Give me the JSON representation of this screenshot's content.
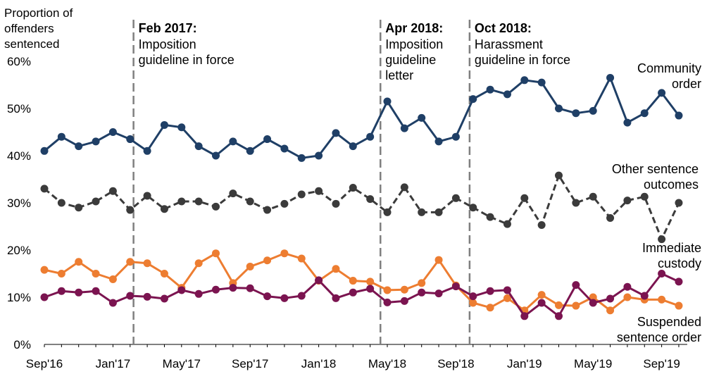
{
  "chart_data": {
    "type": "line",
    "ylabel_lines": [
      "Proportion of",
      "offenders",
      "sentenced"
    ],
    "y_ticks": [
      "0%",
      "10%",
      "20%",
      "30%",
      "40%",
      "50%",
      "60%"
    ],
    "ylim": [
      0,
      60
    ],
    "x_start": "Sep'16",
    "x_tick_labels": [
      {
        "index": 0,
        "label": "Sep'16"
      },
      {
        "index": 4,
        "label": "Jan'17"
      },
      {
        "index": 8,
        "label": "May'17"
      },
      {
        "index": 12,
        "label": "Sep'17"
      },
      {
        "index": 16,
        "label": "Jan'18"
      },
      {
        "index": 20,
        "label": "May'18"
      },
      {
        "index": 24,
        "label": "Sep'18"
      },
      {
        "index": 28,
        "label": "Jan'19"
      },
      {
        "index": 32,
        "label": "May'19"
      },
      {
        "index": 36,
        "label": "Sep'19"
      }
    ],
    "month_count": 38,
    "series": [
      {
        "name_lines": [
          "Community",
          "order"
        ],
        "color": "#1f3f66",
        "dashed": false,
        "values": [
          41,
          44,
          42,
          43,
          45,
          43.5,
          41,
          46.5,
          46,
          42,
          40,
          43,
          41,
          43.5,
          41.5,
          39.5,
          40,
          44.8,
          42,
          44,
          51.5,
          45.8,
          48,
          43,
          44,
          52,
          54,
          53,
          56,
          55.5,
          50,
          49,
          49.5,
          56.5,
          47,
          49,
          53.3,
          48.5
        ]
      },
      {
        "name_lines": [
          "Other sentence",
          "outcomes"
        ],
        "color": "#3b3b3b",
        "dashed": true,
        "values": [
          33,
          30,
          29,
          30.3,
          32.5,
          28.5,
          31.5,
          28.7,
          30.3,
          30.3,
          29.2,
          32,
          30.3,
          28.5,
          29.8,
          31.8,
          32.5,
          29.8,
          33.2,
          30.8,
          28,
          33.3,
          28,
          28,
          31,
          29,
          27,
          25.5,
          31,
          25.3,
          35.8,
          30,
          31.3,
          26.8,
          30.5,
          31.3,
          22.3,
          30
        ]
      },
      {
        "name_lines": [
          "Suspended",
          "sentence order"
        ],
        "color": "#ed7d31",
        "dashed": false,
        "values": [
          15.8,
          15,
          17.5,
          15,
          13.8,
          17.5,
          17.2,
          15,
          12,
          17.2,
          19.3,
          13,
          16.5,
          17.8,
          19.3,
          18.2,
          13.5,
          16,
          13.5,
          13.3,
          11.5,
          11.6,
          13,
          17.9,
          12.5,
          8.8,
          7.8,
          9.8,
          7.2,
          10.5,
          8.3,
          8.2,
          10,
          7.2,
          10,
          9.5,
          9.5,
          8.2
        ]
      },
      {
        "name_lines": [
          "Immediate",
          "custody"
        ],
        "color": "#7b1450",
        "dashed": false,
        "values": [
          10,
          11.3,
          11,
          11.3,
          8.8,
          10.3,
          10.1,
          9.7,
          11.5,
          10.7,
          11.6,
          12,
          11.9,
          10.2,
          9.8,
          10.3,
          13.6,
          9.8,
          11,
          11.8,
          8.9,
          9.2,
          11,
          10.8,
          12.3,
          10.2,
          11.3,
          11.5,
          6,
          8.8,
          6,
          12.6,
          8.8,
          9.7,
          12.2,
          10.3,
          15,
          13.3
        ]
      }
    ],
    "annotations": [
      {
        "index": 5.2,
        "title": "Feb 2017:",
        "lines": [
          "Imposition",
          "guideline in force"
        ]
      },
      {
        "index": 19.6,
        "title": "Apr 2018:",
        "lines": [
          "Imposition",
          "guideline",
          "letter"
        ]
      },
      {
        "index": 24.8,
        "title": "Oct 2018:",
        "lines": [
          "Harassment",
          "guideline in force"
        ]
      }
    ]
  }
}
